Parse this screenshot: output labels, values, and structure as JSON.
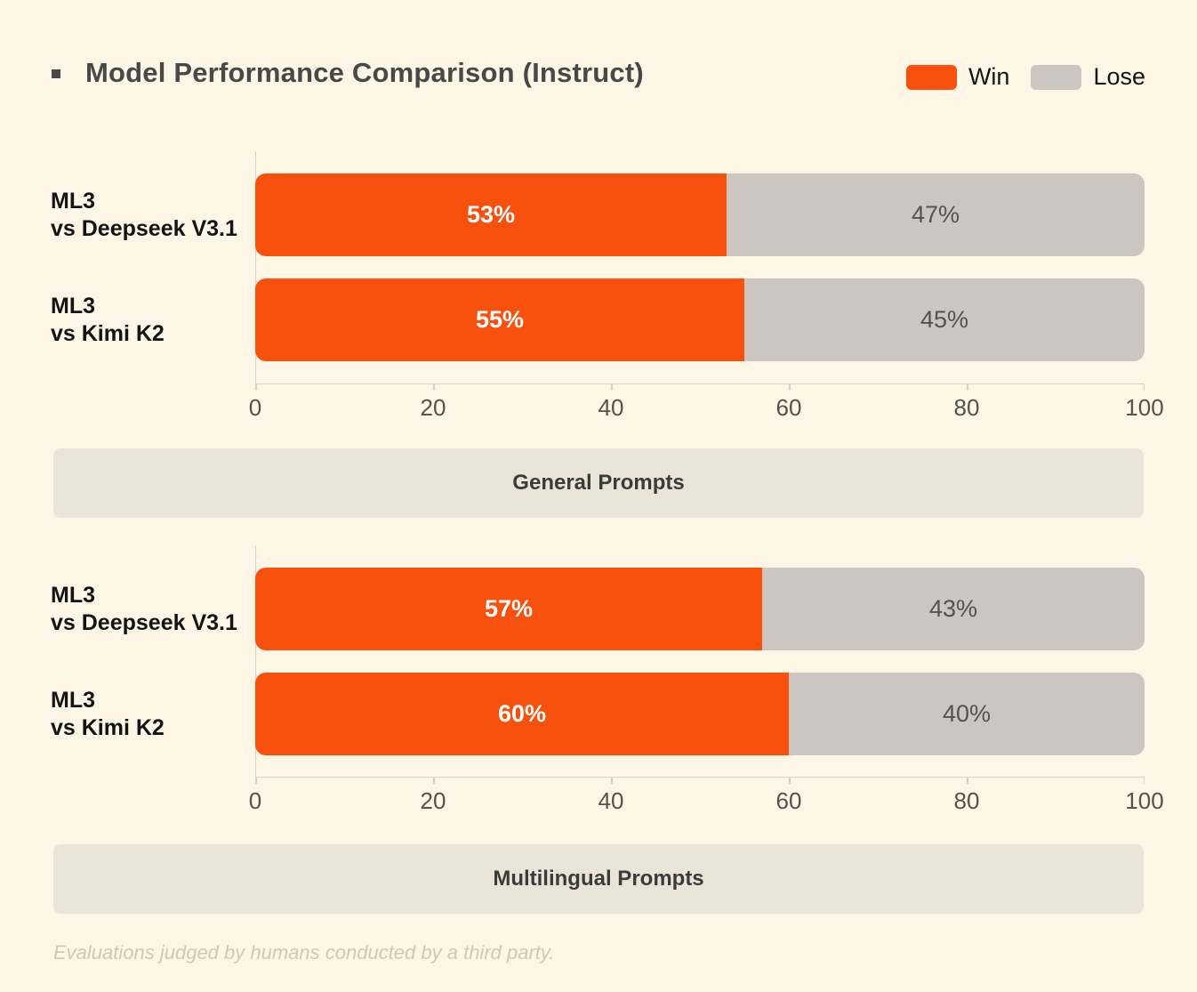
{
  "header": {
    "title": "Model Performance Comparison (Instruct)",
    "legend": [
      {
        "label": "Win",
        "color": "#F8500D"
      },
      {
        "label": "Lose",
        "color": "#CDC6C0"
      }
    ]
  },
  "colors": {
    "background": "#FDF6E7",
    "win": "#F8500D",
    "lose": "#CDC6C0",
    "band_background": "#EAE4D8",
    "axis": "#D9D2C6",
    "win_value_text": "#FFFFFF",
    "lose_value_text": "#56524C"
  },
  "footnote": "Evaluations judged by humans conducted by a third party.",
  "chart_data": [
    {
      "type": "bar",
      "orientation": "horizontal",
      "stacked": true,
      "section_label": "General Prompts",
      "categories": [
        "ML3 vs Deepseek V3.1",
        "ML3 vs Kimi K2"
      ],
      "category_lines": [
        [
          "ML3",
          "vs Deepseek V3.1"
        ],
        [
          "ML3",
          "vs Kimi K2"
        ]
      ],
      "series": [
        {
          "name": "Win",
          "values": [
            53,
            55
          ],
          "labels": [
            "53%",
            "55%"
          ]
        },
        {
          "name": "Lose",
          "values": [
            47,
            45
          ],
          "labels": [
            "47%",
            "45%"
          ]
        }
      ],
      "xlim": [
        0,
        100
      ],
      "xticks": [
        "0",
        "20",
        "40",
        "60",
        "80",
        "100"
      ],
      "grid": false,
      "legend_position": "top-right"
    },
    {
      "type": "bar",
      "orientation": "horizontal",
      "stacked": true,
      "section_label": "Multilingual Prompts",
      "categories": [
        "ML3 vs Deepseek V3.1",
        "ML3 vs Kimi K2"
      ],
      "category_lines": [
        [
          "ML3",
          "vs Deepseek V3.1"
        ],
        [
          "ML3",
          "vs Kimi K2"
        ]
      ],
      "series": [
        {
          "name": "Win",
          "values": [
            57,
            60
          ],
          "labels": [
            "57%",
            "60%"
          ]
        },
        {
          "name": "Lose",
          "values": [
            43,
            40
          ],
          "labels": [
            "43%",
            "40%"
          ]
        }
      ],
      "xlim": [
        0,
        100
      ],
      "xticks": [
        "0",
        "20",
        "40",
        "60",
        "80",
        "100"
      ],
      "grid": false,
      "legend_position": "top-right"
    }
  ]
}
